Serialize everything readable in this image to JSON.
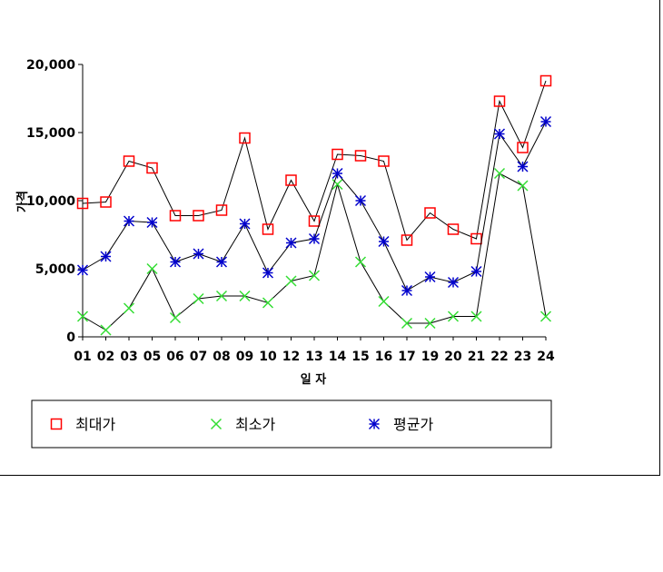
{
  "chart_data": {
    "type": "line",
    "xlabel": "일 자",
    "ylabel": "가격",
    "ylim": [
      0,
      20000
    ],
    "yticks": [
      0,
      5000,
      10000,
      15000,
      20000
    ],
    "ytick_labels": [
      "0",
      "5,000",
      "10,000",
      "15,000",
      "20,000"
    ],
    "categories": [
      "01",
      "02",
      "03",
      "05",
      "06",
      "07",
      "08",
      "09",
      "10",
      "12",
      "13",
      "14",
      "15",
      "16",
      "17",
      "19",
      "20",
      "21",
      "22",
      "23",
      "24"
    ],
    "grid": false,
    "legend": "bottom",
    "series": [
      {
        "name": "최대가",
        "marker": "square",
        "color": "#ff0000",
        "values": [
          9800,
          9900,
          12900,
          12400,
          8900,
          8900,
          9300,
          14600,
          7900,
          11500,
          8500,
          13400,
          13300,
          12900,
          7100,
          9100,
          7900,
          7200,
          17300,
          13900,
          18800
        ]
      },
      {
        "name": "최소가",
        "marker": "x",
        "color": "#33dd33",
        "values": [
          1500,
          500,
          2100,
          5000,
          1400,
          2800,
          3000,
          3000,
          2500,
          4100,
          4500,
          11200,
          5500,
          2600,
          1000,
          1000,
          1500,
          1500,
          12000,
          11100,
          1500
        ]
      },
      {
        "name": "평균가",
        "marker": "asterisk",
        "color": "#0000cc",
        "values": [
          4900,
          5900,
          8500,
          8400,
          5500,
          6100,
          5500,
          8300,
          4700,
          6900,
          7200,
          12000,
          10000,
          7000,
          3400,
          4400,
          4000,
          4800,
          14900,
          12500,
          15800
        ]
      }
    ]
  }
}
